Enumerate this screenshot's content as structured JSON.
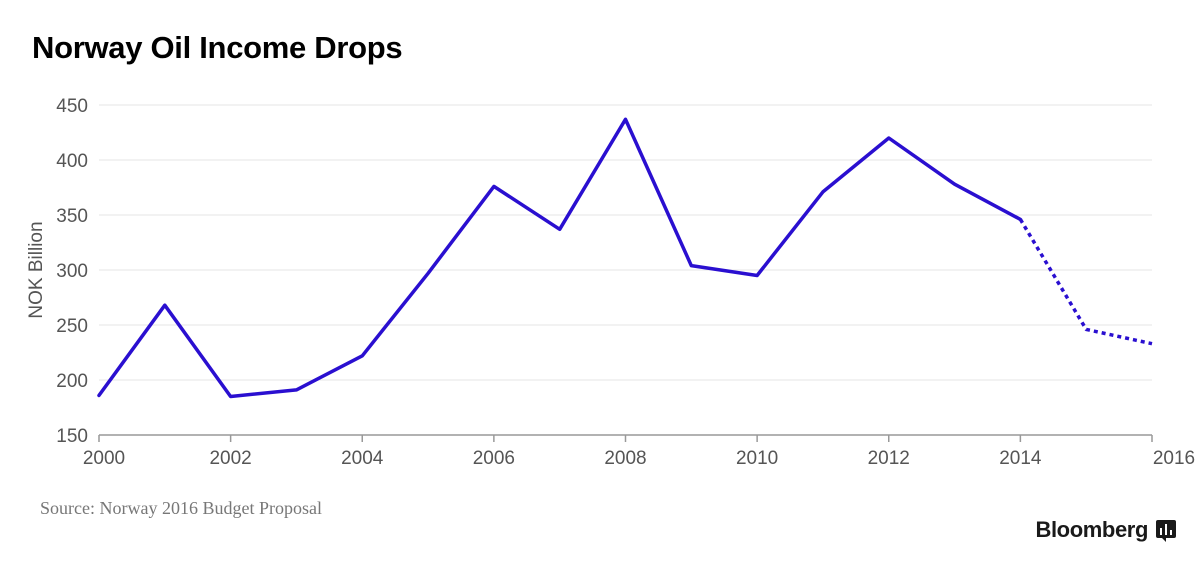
{
  "title": "Norway Oil Income Drops",
  "source": "Source: Norway 2016 Budget Proposal",
  "brand": "Bloomberg",
  "colors": {
    "line": "#2a0fd0",
    "grid": "#e6e6e6",
    "axis": "#999999",
    "text": "#555555"
  },
  "chart_data": {
    "type": "line",
    "title": "Norway Oil Income Drops",
    "xlabel": "",
    "ylabel": "NOK Billion",
    "xlim": [
      2000,
      2016
    ],
    "ylim": [
      150,
      450
    ],
    "xticks": [
      "2000",
      "2002",
      "2004",
      "2006",
      "2008",
      "2010",
      "2012",
      "2014",
      "2016"
    ],
    "yticks": [
      "150",
      "200",
      "250",
      "300",
      "350",
      "400",
      "450"
    ],
    "grid": "horizontal",
    "series": [
      {
        "style": "solid",
        "x": [
          2000,
          2001,
          2002,
          2003,
          2004,
          2005,
          2006,
          2007,
          2008,
          2009,
          2010,
          2011,
          2012,
          2013,
          2014
        ],
        "y": [
          186,
          268,
          185,
          191,
          222,
          297,
          376,
          337,
          437,
          304,
          295,
          371,
          420,
          378,
          346
        ]
      },
      {
        "style": "dotted",
        "x": [
          2014,
          2015,
          2016
        ],
        "y": [
          346,
          246,
          233
        ]
      }
    ]
  }
}
